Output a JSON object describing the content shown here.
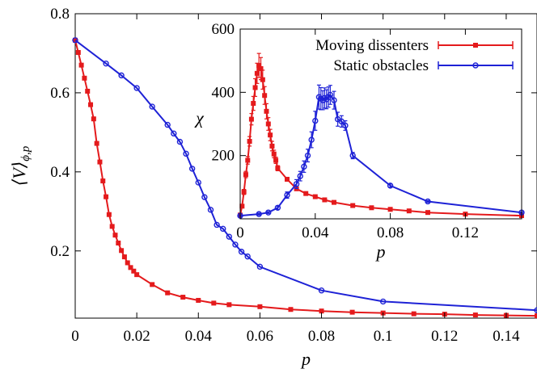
{
  "chart_data": [
    {
      "type": "line",
      "xlabel": "p",
      "ylabel": "⟨V⟩ϕ,p",
      "ylabel_parts": {
        "main": "⟨V⟩",
        "sub": "ϕ,p"
      },
      "xlim": [
        0,
        0.15
      ],
      "ylim": [
        0.03,
        0.8
      ],
      "x_ticks": [
        0,
        0.02,
        0.04,
        0.06,
        0.08,
        0.1,
        0.12,
        0.14
      ],
      "x_tick_labels": [
        "0",
        "0.02",
        "0.04",
        "0.06",
        "0.08",
        "0.1",
        "0.12",
        "0.14"
      ],
      "y_ticks": [
        0.2,
        0.4,
        0.6,
        0.8
      ],
      "y_tick_labels": [
        "0.2",
        "0.4",
        "0.6",
        "0.8"
      ],
      "grid": false,
      "series": [
        {
          "name": "Moving dissenters",
          "color": "#e41a1c",
          "marker": "square",
          "x": [
            0,
            0.001,
            0.002,
            0.003,
            0.004,
            0.005,
            0.006,
            0.007,
            0.008,
            0.009,
            0.01,
            0.011,
            0.012,
            0.013,
            0.014,
            0.015,
            0.016,
            0.017,
            0.018,
            0.019,
            0.02,
            0.025,
            0.03,
            0.035,
            0.04,
            0.045,
            0.05,
            0.06,
            0.07,
            0.08,
            0.09,
            0.1,
            0.11,
            0.12,
            0.13,
            0.14,
            0.15
          ],
          "y": [
            0.733,
            0.702,
            0.67,
            0.637,
            0.604,
            0.57,
            0.534,
            0.472,
            0.425,
            0.377,
            0.337,
            0.292,
            0.262,
            0.24,
            0.22,
            0.201,
            0.185,
            0.17,
            0.158,
            0.149,
            0.14,
            0.115,
            0.094,
            0.083,
            0.075,
            0.068,
            0.064,
            0.059,
            0.052,
            0.048,
            0.045,
            0.043,
            0.041,
            0.04,
            0.038,
            0.037,
            0.036
          ]
        },
        {
          "name": "Static obstacles",
          "color": "#1e22d6",
          "marker": "circle",
          "x": [
            0,
            0.01,
            0.015,
            0.02,
            0.025,
            0.03,
            0.032,
            0.034,
            0.036,
            0.038,
            0.04,
            0.042,
            0.044,
            0.046,
            0.048,
            0.05,
            0.052,
            0.054,
            0.056,
            0.06,
            0.08,
            0.1,
            0.15
          ],
          "y": [
            0.733,
            0.674,
            0.644,
            0.612,
            0.565,
            0.519,
            0.497,
            0.476,
            0.446,
            0.408,
            0.373,
            0.336,
            0.304,
            0.266,
            0.256,
            0.236,
            0.216,
            0.198,
            0.186,
            0.16,
            0.1,
            0.072,
            0.05
          ]
        }
      ]
    },
    {
      "type": "line",
      "inset": true,
      "xlabel": "p",
      "ylabel": "χ",
      "xlim": [
        0,
        0.15
      ],
      "ylim": [
        0,
        600
      ],
      "x_ticks": [
        0,
        0.04,
        0.08,
        0.12
      ],
      "x_tick_labels": [
        "0",
        "0.04",
        "0.08",
        "0.12"
      ],
      "y_ticks": [
        200,
        400,
        600
      ],
      "y_tick_labels": [
        "200",
        "400",
        "600"
      ],
      "legend": {
        "position": "top-right"
      },
      "grid": false,
      "series": [
        {
          "name": "Moving dissenters",
          "color": "#e41a1c",
          "marker": "square",
          "error_bars": true,
          "x": [
            0,
            0.001,
            0.002,
            0.003,
            0.004,
            0.005,
            0.006,
            0.007,
            0.008,
            0.009,
            0.01,
            0.011,
            0.012,
            0.013,
            0.014,
            0.015,
            0.016,
            0.017,
            0.018,
            0.019,
            0.02,
            0.025,
            0.03,
            0.035,
            0.04,
            0.045,
            0.05,
            0.06,
            0.07,
            0.08,
            0.09,
            0.1,
            0.12,
            0.15
          ],
          "y": [
            12,
            40,
            85,
            140,
            185,
            245,
            315,
            365,
            415,
            460,
            485,
            475,
            440,
            390,
            340,
            300,
            265,
            230,
            205,
            185,
            160,
            125,
            95,
            80,
            70,
            60,
            52,
            42,
            35,
            30,
            25,
            20,
            15,
            10
          ],
          "err": [
            3,
            5,
            8,
            10,
            12,
            15,
            18,
            22,
            28,
            32,
            38,
            35,
            30,
            28,
            24,
            20,
            18,
            15,
            12,
            10,
            8,
            6,
            5,
            4,
            3,
            3,
            3,
            2,
            2,
            2,
            2,
            2,
            1,
            1
          ]
        },
        {
          "name": "Static obstacles",
          "color": "#1e22d6",
          "marker": "circle",
          "error_bars": true,
          "x": [
            0,
            0.01,
            0.015,
            0.02,
            0.025,
            0.03,
            0.032,
            0.034,
            0.036,
            0.038,
            0.04,
            0.042,
            0.043,
            0.044,
            0.045,
            0.046,
            0.047,
            0.048,
            0.05,
            0.052,
            0.054,
            0.056,
            0.06,
            0.08,
            0.1,
            0.15
          ],
          "y": [
            10,
            15,
            20,
            35,
            75,
            110,
            135,
            165,
            200,
            250,
            310,
            385,
            380,
            375,
            382,
            378,
            385,
            392,
            375,
            315,
            308,
            295,
            200,
            105,
            55,
            20
          ],
          "err": [
            2,
            3,
            3,
            5,
            10,
            14,
            15,
            18,
            20,
            25,
            30,
            38,
            35,
            30,
            32,
            30,
            32,
            30,
            28,
            22,
            18,
            15,
            10,
            5,
            3,
            2
          ]
        }
      ]
    }
  ]
}
